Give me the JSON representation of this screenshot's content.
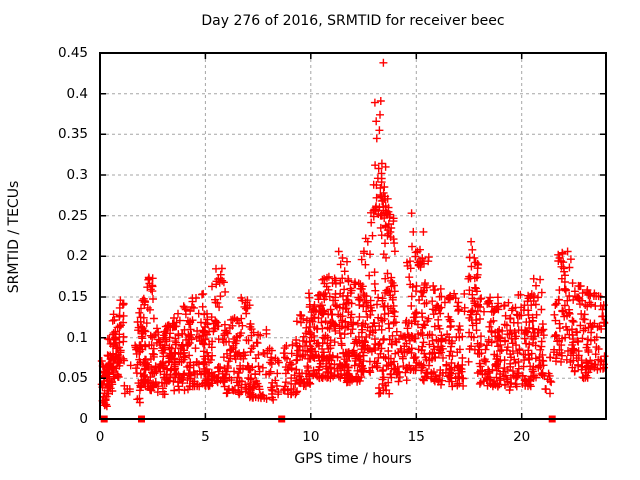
{
  "chart_data": {
    "type": "scatter",
    "title": "Day 276 of 2016, SRMTID for receiver beec",
    "xlabel": "GPS time / hours",
    "ylabel": "SRMTID / TECUs",
    "xlim": [
      0,
      24
    ],
    "ylim": [
      0,
      0.45
    ],
    "xticks": [
      0,
      5,
      10,
      15,
      20
    ],
    "xtick_labels": [
      "0",
      "5",
      "10",
      "15",
      "20"
    ],
    "yticks": [
      0,
      0.05,
      0.1,
      0.15,
      0.2,
      0.25,
      0.3,
      0.35,
      0.4,
      0.45
    ],
    "ytick_labels": [
      "0",
      "0.05",
      "0.1",
      "0.15",
      "0.2",
      "0.25",
      "0.3",
      "0.35",
      "0.4",
      "0.45"
    ],
    "grid": true,
    "legend": "none",
    "marker": "plus",
    "marker_color": "#ff0000",
    "grid_color": "#a6a6a6",
    "border_color": "#000000",
    "seed": 20161002,
    "zero_marker_x": [
      0.2,
      1.97,
      8.62,
      21.45
    ],
    "clusters": [
      [
        0.08,
        0.35,
        30,
        0.015,
        0.075,
        1.3
      ],
      [
        0.3,
        0.65,
        40,
        0.03,
        0.105,
        1.2
      ],
      [
        0.6,
        0.95,
        45,
        0.05,
        0.135,
        1.1
      ],
      [
        0.9,
        1.15,
        18,
        0.07,
        0.15,
        1.0
      ],
      [
        1.15,
        1.5,
        6,
        0.03,
        0.08,
        1.2
      ],
      [
        1.65,
        1.95,
        25,
        0.02,
        0.135,
        1.1
      ],
      [
        1.9,
        2.2,
        45,
        0.04,
        0.15,
        1.3
      ],
      [
        2.15,
        2.55,
        40,
        0.035,
        0.175,
        1.5
      ],
      [
        2.5,
        3.1,
        45,
        0.03,
        0.125,
        1.4
      ],
      [
        3.0,
        3.6,
        50,
        0.04,
        0.125,
        1.3
      ],
      [
        3.5,
        4.3,
        70,
        0.035,
        0.14,
        1.4
      ],
      [
        4.2,
        5.0,
        65,
        0.04,
        0.155,
        1.5
      ],
      [
        4.9,
        5.35,
        40,
        0.04,
        0.13,
        1.3
      ],
      [
        5.3,
        5.95,
        55,
        0.045,
        0.185,
        1.6
      ],
      [
        5.9,
        6.6,
        55,
        0.03,
        0.125,
        1.3
      ],
      [
        6.5,
        7.2,
        55,
        0.03,
        0.15,
        1.6
      ],
      [
        7.1,
        7.9,
        45,
        0.025,
        0.11,
        1.3
      ],
      [
        7.8,
        8.25,
        20,
        0.02,
        0.09,
        1.2
      ],
      [
        8.3,
        8.75,
        8,
        0.03,
        0.08,
        1.0
      ],
      [
        8.7,
        9.4,
        40,
        0.03,
        0.1,
        1.2
      ],
      [
        9.3,
        10.0,
        55,
        0.04,
        0.13,
        1.3
      ],
      [
        9.9,
        10.6,
        70,
        0.05,
        0.155,
        1.4
      ],
      [
        10.5,
        11.2,
        80,
        0.05,
        0.175,
        1.5
      ],
      [
        11.1,
        11.8,
        80,
        0.05,
        0.195,
        1.6
      ],
      [
        11.7,
        12.45,
        75,
        0.045,
        0.17,
        1.4
      ],
      [
        12.4,
        12.85,
        50,
        0.055,
        0.21,
        1.4
      ],
      [
        12.8,
        14.0,
        120,
        0.06,
        0.26,
        1.3
      ],
      [
        13.0,
        13.7,
        22,
        0.25,
        0.315,
        1.2
      ],
      [
        13.2,
        13.9,
        15,
        0.03,
        0.06,
        1.0
      ],
      [
        14.0,
        14.55,
        30,
        0.045,
        0.12,
        1.2
      ],
      [
        14.5,
        15.3,
        70,
        0.06,
        0.215,
        1.4
      ],
      [
        15.2,
        15.6,
        10,
        0.155,
        0.2,
        1.0
      ],
      [
        15.2,
        16.2,
        75,
        0.045,
        0.165,
        1.3
      ],
      [
        16.1,
        17.3,
        85,
        0.04,
        0.155,
        1.3
      ],
      [
        17.45,
        17.95,
        45,
        0.07,
        0.218,
        1.1
      ],
      [
        17.9,
        18.9,
        80,
        0.04,
        0.15,
        1.3
      ],
      [
        18.8,
        19.9,
        85,
        0.035,
        0.145,
        1.3
      ],
      [
        19.8,
        20.6,
        70,
        0.04,
        0.155,
        1.3
      ],
      [
        20.5,
        21.1,
        45,
        0.05,
        0.175,
        1.4
      ],
      [
        21.05,
        21.55,
        12,
        0.03,
        0.09,
        1.1
      ],
      [
        21.55,
        22.45,
        70,
        0.07,
        0.205,
        1.2
      ],
      [
        22.4,
        23.2,
        60,
        0.05,
        0.165,
        1.3
      ],
      [
        23.1,
        23.95,
        55,
        0.06,
        0.16,
        1.2
      ]
    ],
    "highlight_points": [
      [
        13.44,
        0.438
      ],
      [
        13.04,
        0.389
      ],
      [
        13.32,
        0.391
      ],
      [
        13.28,
        0.374
      ],
      [
        13.1,
        0.366
      ],
      [
        13.25,
        0.355
      ],
      [
        13.13,
        0.345
      ],
      [
        13.05,
        0.312
      ],
      [
        13.22,
        0.308
      ],
      [
        13.35,
        0.302
      ],
      [
        13.18,
        0.296
      ],
      [
        12.98,
        0.288
      ],
      [
        13.3,
        0.284
      ],
      [
        13.45,
        0.278
      ],
      [
        13.12,
        0.272
      ],
      [
        13.38,
        0.268
      ],
      [
        13.55,
        0.262
      ],
      [
        12.97,
        0.256
      ],
      [
        13.2,
        0.252
      ],
      [
        13.48,
        0.247
      ],
      [
        14.78,
        0.253
      ],
      [
        14.86,
        0.23
      ],
      [
        15.34,
        0.23
      ],
      [
        14.8,
        0.212
      ],
      [
        12.6,
        0.222
      ],
      [
        12.7,
        0.218
      ],
      [
        11.32,
        0.206
      ],
      [
        11.5,
        0.198
      ],
      [
        17.6,
        0.218
      ],
      [
        17.66,
        0.208
      ],
      [
        22.18,
        0.206
      ],
      [
        21.8,
        0.198
      ],
      [
        5.78,
        0.185
      ],
      [
        2.5,
        0.173
      ]
    ]
  }
}
